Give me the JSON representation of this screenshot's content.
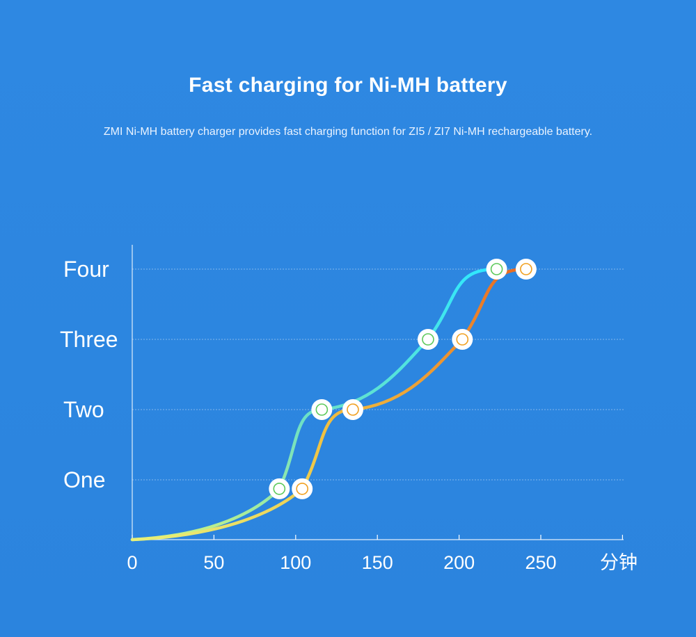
{
  "title": "Fast charging for Ni-MH battery",
  "subtitle": "ZMI Ni-MH battery charger provides fast charging function for ZI5 / ZI7 Ni-MH rechargeable battery.",
  "colors": {
    "background": "#2d86e0",
    "series_a": [
      "#d8f57a",
      "#6ee0c4",
      "#2ee8ff"
    ],
    "series_b": [
      "#e8f07a",
      "#f0c040",
      "#e86a22"
    ],
    "marker_a": "#5cc95a",
    "marker_b": "#f0a020"
  },
  "chart_data": {
    "type": "line",
    "x_unit": "分钟",
    "x_ticks": [
      "0",
      "50",
      "100",
      "150",
      "200",
      "250"
    ],
    "xlim": [
      0,
      300
    ],
    "y_levels": [
      "One",
      "Two",
      "Three",
      "Four"
    ],
    "series": [
      {
        "key": "a",
        "points": [
          [
            0,
            0
          ],
          [
            90,
            0.85
          ],
          [
            116,
            2
          ],
          [
            181,
            3
          ],
          [
            223,
            4
          ]
        ]
      },
      {
        "key": "b",
        "points": [
          [
            0,
            0
          ],
          [
            104,
            0.85
          ],
          [
            135,
            2
          ],
          [
            202,
            3
          ],
          [
            241,
            4
          ]
        ]
      }
    ]
  }
}
